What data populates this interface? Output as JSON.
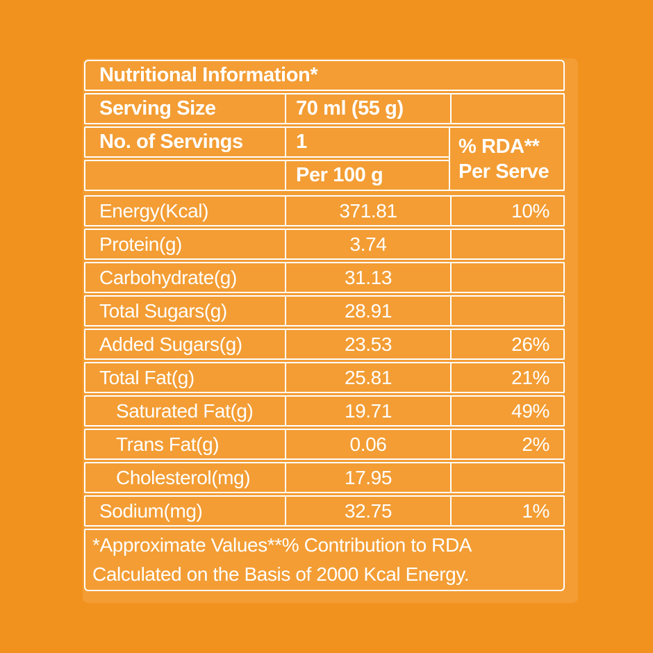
{
  "page": {
    "background_color": "#F2921E",
    "border_color": "#FFFFFF",
    "text_color": "#FFFFFF"
  },
  "table": {
    "title": "Nutritional Information*",
    "serving_size": {
      "label": "Serving Size",
      "value": "70 ml (55 g)"
    },
    "servings": {
      "label": "No. of Servings",
      "value": "1"
    },
    "per_100_label": "Per 100 g",
    "rda_header": {
      "line1": "% RDA**",
      "line2": "Per Serve"
    },
    "rows": [
      {
        "label": "Energy(Kcal)",
        "per100": "371.81",
        "rda": "10%"
      },
      {
        "label": "Protein(g)",
        "per100": "3.74",
        "rda": ""
      },
      {
        "label": "Carbohydrate(g)",
        "per100": "31.13",
        "rda": ""
      },
      {
        "label": "Total Sugars(g)",
        "per100": "28.91",
        "rda": ""
      },
      {
        "label": "Added Sugars(g)",
        "per100": "23.53",
        "rda": "26%"
      },
      {
        "label": "Total Fat(g)",
        "per100": "25.81",
        "rda": "21%"
      },
      {
        "label": "Saturated Fat(g)",
        "per100": "19.71",
        "rda": "49%"
      },
      {
        "label": "Trans Fat(g)",
        "per100": "0.06",
        "rda": "2%"
      },
      {
        "label": "Cholesterol(mg)",
        "per100": "17.95",
        "rda": ""
      },
      {
        "label": "Sodium(mg)",
        "per100": "32.75",
        "rda": "1%"
      }
    ],
    "footnote_line1": "*Approximate Values**% Contribution to RDA",
    "footnote_line2": "Calculated on the Basis of 2000 Kcal Energy."
  }
}
